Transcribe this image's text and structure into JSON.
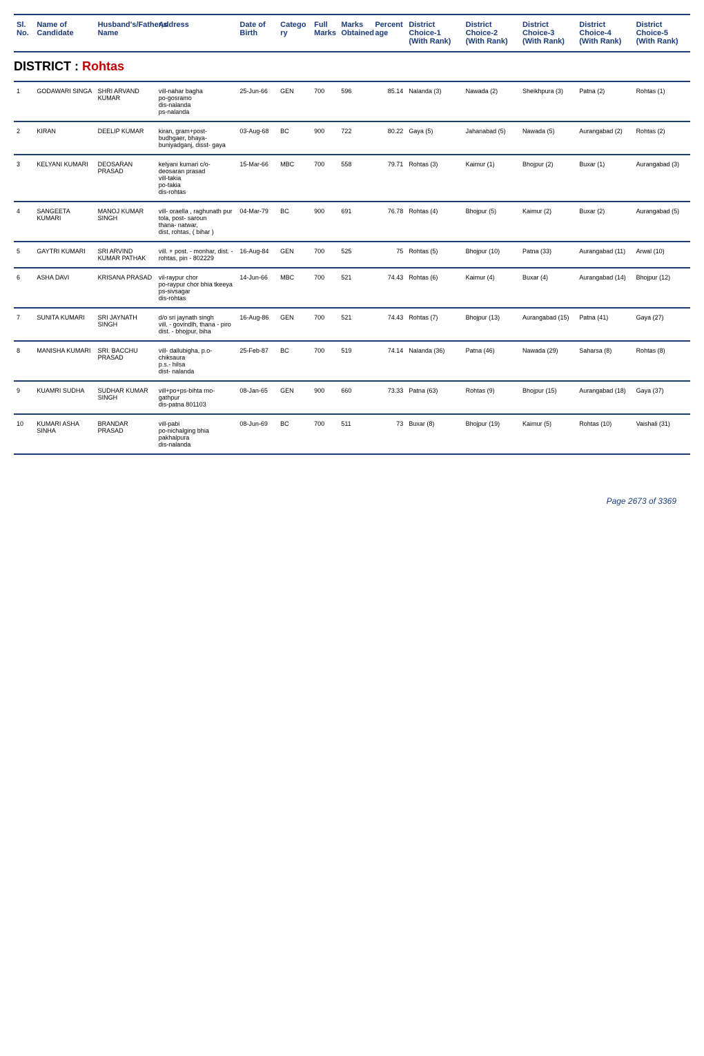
{
  "headers": {
    "slno": "Sl. No.",
    "name": "Name of Candidate",
    "husband": "Husband's/Father,s Name",
    "address": "Address",
    "dob": "Date of Birth",
    "category": "Catego ry",
    "fullmarks": "Full Marks",
    "marksobtained": "Marks Obtained",
    "percent": "Percent age",
    "choice1": "District Choice-1 (With Rank)",
    "choice2": "District Choice-2 (With Rank)",
    "choice3": "District Choice-3 (With Rank)",
    "choice4": "District Choice-4 (With Rank)",
    "choice5": "District Choice-5 (With Rank)"
  },
  "district_label": "DISTRICT : ",
  "district_name": "Rohtas",
  "rows": [
    {
      "slno": "1",
      "name": "GODAWARI SINGA",
      "husband": "SHRI ARVAND KUMAR",
      "address": "vill-nahar bagha\npo-gosramo\ndis-nalanda\nps-nalanda",
      "dob": "25-Jun-66",
      "category": "GEN",
      "fullmarks": "700",
      "marksobtained": "596",
      "percent": "85.14",
      "choice1": "Nalanda (3)",
      "choice2": "Nawada (2)",
      "choice3": "Sheikhpura (3)",
      "choice4": "Patna (2)",
      "choice5": "Rohtas (1)"
    },
    {
      "slno": "2",
      "name": "KIRAN",
      "husband": "DEELIP KUMAR",
      "address": "kiran, gram+post-budhgaer, bhaya-buniyadganj, disst- gaya",
      "dob": "03-Aug-68",
      "category": "BC",
      "fullmarks": "900",
      "marksobtained": "722",
      "percent": "80.22",
      "choice1": "Gaya (5)",
      "choice2": "Jahanabad (5)",
      "choice3": "Nawada (5)",
      "choice4": "Aurangabad (2)",
      "choice5": "Rohtas (2)"
    },
    {
      "slno": "3",
      "name": "KELYANI KUMARI",
      "husband": "DEOSARAN PRASAD",
      "address": "kelyani kumari c/o-deosaran prasad\nvill-takia\npo-takia\ndis-rohtas",
      "dob": "15-Mar-66",
      "category": "MBC",
      "fullmarks": "700",
      "marksobtained": "558",
      "percent": "79.71",
      "choice1": "Rohtas (3)",
      "choice2": "Kaimur (1)",
      "choice3": "Bhojpur (2)",
      "choice4": "Buxar (1)",
      "choice5": "Aurangabad (3)"
    },
    {
      "slno": "4",
      "name": "SANGEETA KUMARI",
      "husband": "MANOJ KUMAR SINGH",
      "address": "vill- oraella , raghunath pur tola, post- saroun\nthana- natwar,\ndist, rohtas, ( bihar )",
      "dob": "04-Mar-79",
      "category": "BC",
      "fullmarks": "900",
      "marksobtained": "691",
      "percent": "76.78",
      "choice1": "Rohtas (4)",
      "choice2": "Bhojpur (5)",
      "choice3": "Kaimur (2)",
      "choice4": "Buxar (2)",
      "choice5": "Aurangabad (5)"
    },
    {
      "slno": "5",
      "name": "GAYTRI KUMARI",
      "husband": "SRI ARVIND KUMAR PATHAK",
      "address": "vill. + post. - monhar, dist. - rohtas, pin - 802229",
      "dob": "16-Aug-84",
      "category": "GEN",
      "fullmarks": "700",
      "marksobtained": "525",
      "percent": "75",
      "choice1": "Rohtas (5)",
      "choice2": "Bhojpur (10)",
      "choice3": "Patna (33)",
      "choice4": "Aurangabad (11)",
      "choice5": "Arwal (10)"
    },
    {
      "slno": "6",
      "name": "ASHA DAVI",
      "husband": "KRISANA PRASAD",
      "address": "vil-raypur chor\npo-raypur chor bhia tkeeya\nps-sivsagar\ndis-rohtas",
      "dob": "14-Jun-66",
      "category": "MBC",
      "fullmarks": "700",
      "marksobtained": "521",
      "percent": "74.43",
      "choice1": "Rohtas (6)",
      "choice2": "Kaimur (4)",
      "choice3": "Buxar (4)",
      "choice4": "Aurangabad (14)",
      "choice5": "Bhojpur (12)"
    },
    {
      "slno": "7",
      "name": "SUNITA KUMARI",
      "husband": "SRI JAYNATH SINGH",
      "address": "d/o sri jaynath singh\nvill. - govindlh, thana - piro\ndist. - bhojpur, biha",
      "dob": "16-Aug-86",
      "category": "GEN",
      "fullmarks": "700",
      "marksobtained": "521",
      "percent": "74.43",
      "choice1": "Rohtas (7)",
      "choice2": "Bhojpur (13)",
      "choice3": "Aurangabad (15)",
      "choice4": "Patna (41)",
      "choice5": "Gaya (27)"
    },
    {
      "slno": "8",
      "name": "MANISHA KUMARI",
      "husband": "SRI. BACCHU PRASAD",
      "address": "vill- dallubigha, p.o-chiksaura\np.s.- hilsa\ndist- nalanda",
      "dob": "25-Feb-87",
      "category": "BC",
      "fullmarks": "700",
      "marksobtained": "519",
      "percent": "74.14",
      "choice1": "Nalanda (36)",
      "choice2": "Patna (46)",
      "choice3": "Nawada (29)",
      "choice4": "Saharsa (8)",
      "choice5": "Rohtas (8)"
    },
    {
      "slno": "9",
      "name": "KUAMRI SUDHA",
      "husband": "SUDHAR KUMAR SINGH",
      "address": "vill+po+ps-bihta rno-gathpur\ndis-patna 801103",
      "dob": "08-Jan-65",
      "category": "GEN",
      "fullmarks": "900",
      "marksobtained": "660",
      "percent": "73.33",
      "choice1": "Patna (63)",
      "choice2": "Rohtas (9)",
      "choice3": "Bhojpur (15)",
      "choice4": "Aurangabad (18)",
      "choice5": "Gaya (37)"
    },
    {
      "slno": "10",
      "name": "KUMARI ASHA SINHA",
      "husband": "BRANDAR PRASAD",
      "address": "vill-pabi\npo-nichalging bhia pakhalpura\ndis-nalanda",
      "dob": "08-Jun-69",
      "category": "BC",
      "fullmarks": "700",
      "marksobtained": "511",
      "percent": "73",
      "choice1": "Buxar (8)",
      "choice2": "Bhojpur (19)",
      "choice3": "Kaimur (5)",
      "choice4": "Rohtas (10)",
      "choice5": "Vaishali (31)"
    }
  ],
  "footer": "Page 2673 of 3369"
}
